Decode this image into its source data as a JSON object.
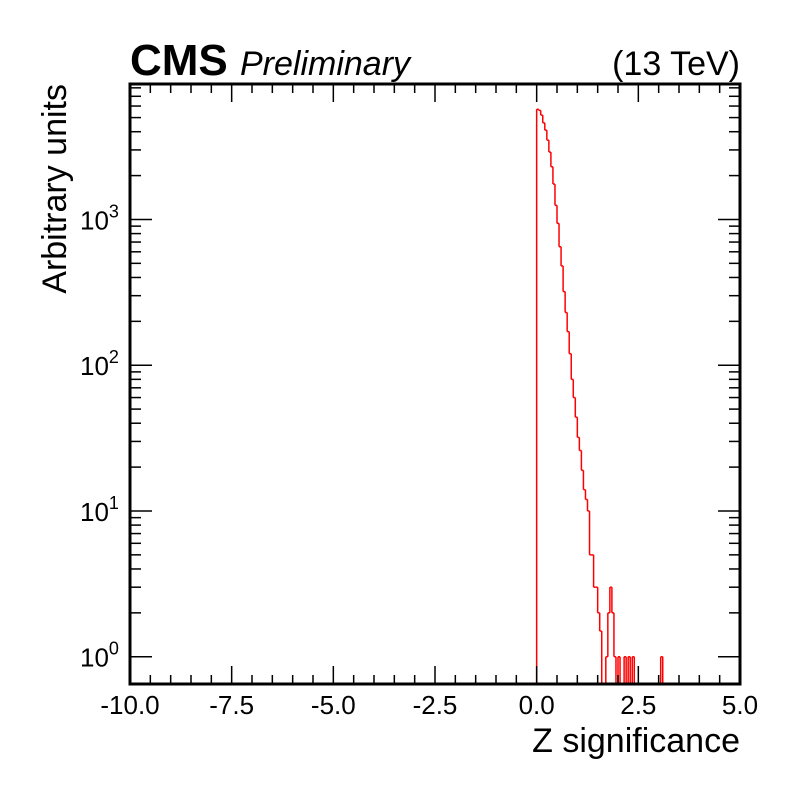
{
  "header": {
    "experiment": "CMS",
    "status": "Preliminary",
    "energy": "(13 TeV)"
  },
  "colors": {
    "histogram": "#ff0000",
    "axes": "#000000",
    "background": "#ffffff"
  },
  "chart_data": {
    "type": "histogram",
    "xlabel": "Z significance",
    "ylabel": "Arbitrary units",
    "xlim": [
      -10.0,
      5.0
    ],
    "ylim": [
      0.65,
      8500
    ],
    "yscale": "log",
    "grid": false,
    "x_tick_labels": [
      "-10.0",
      "-7.5",
      "-5.0",
      "-2.5",
      "0.0",
      "2.5",
      "5.0"
    ],
    "y_tick_labels": [
      {
        "base": "10",
        "exp": "0"
      },
      {
        "base": "10",
        "exp": "1"
      },
      {
        "base": "10",
        "exp": "2"
      },
      {
        "base": "10",
        "exp": "3"
      }
    ],
    "series": [
      {
        "bin_width": 0.05,
        "bin_starts": [
          0.0,
          0.05,
          0.1,
          0.15,
          0.2,
          0.25,
          0.3,
          0.35,
          0.4,
          0.45,
          0.5,
          0.55,
          0.6,
          0.65,
          0.7,
          0.75,
          0.8,
          0.85,
          0.9,
          0.95,
          1.0,
          1.05,
          1.1,
          1.15,
          1.2,
          1.25,
          1.3,
          1.35,
          1.4,
          1.45,
          1.5,
          1.55,
          1.6,
          1.65,
          1.7,
          1.75,
          1.8,
          1.85,
          1.9,
          1.95,
          2.0,
          2.05,
          2.1,
          2.15,
          2.2,
          2.25,
          2.3,
          2.35,
          2.4,
          2.45,
          2.5,
          2.55,
          2.6,
          2.65,
          2.7,
          2.75,
          2.8,
          2.85,
          2.9,
          2.95,
          3.0,
          3.05
        ],
        "values": [
          5700,
          5600,
          5200,
          4600,
          4100,
          3500,
          2900,
          2300,
          1750,
          1250,
          940,
          650,
          480,
          320,
          230,
          170,
          120,
          80,
          60,
          44,
          32,
          26,
          19,
          14,
          12,
          10,
          5,
          5,
          3,
          3,
          2,
          1.5,
          0,
          0,
          1,
          2,
          3,
          2,
          1,
          0,
          1,
          0,
          0,
          1,
          0,
          1,
          0,
          1,
          0,
          0,
          0,
          0,
          0,
          0,
          0,
          0,
          0,
          0,
          0,
          0,
          0,
          1
        ]
      }
    ]
  }
}
